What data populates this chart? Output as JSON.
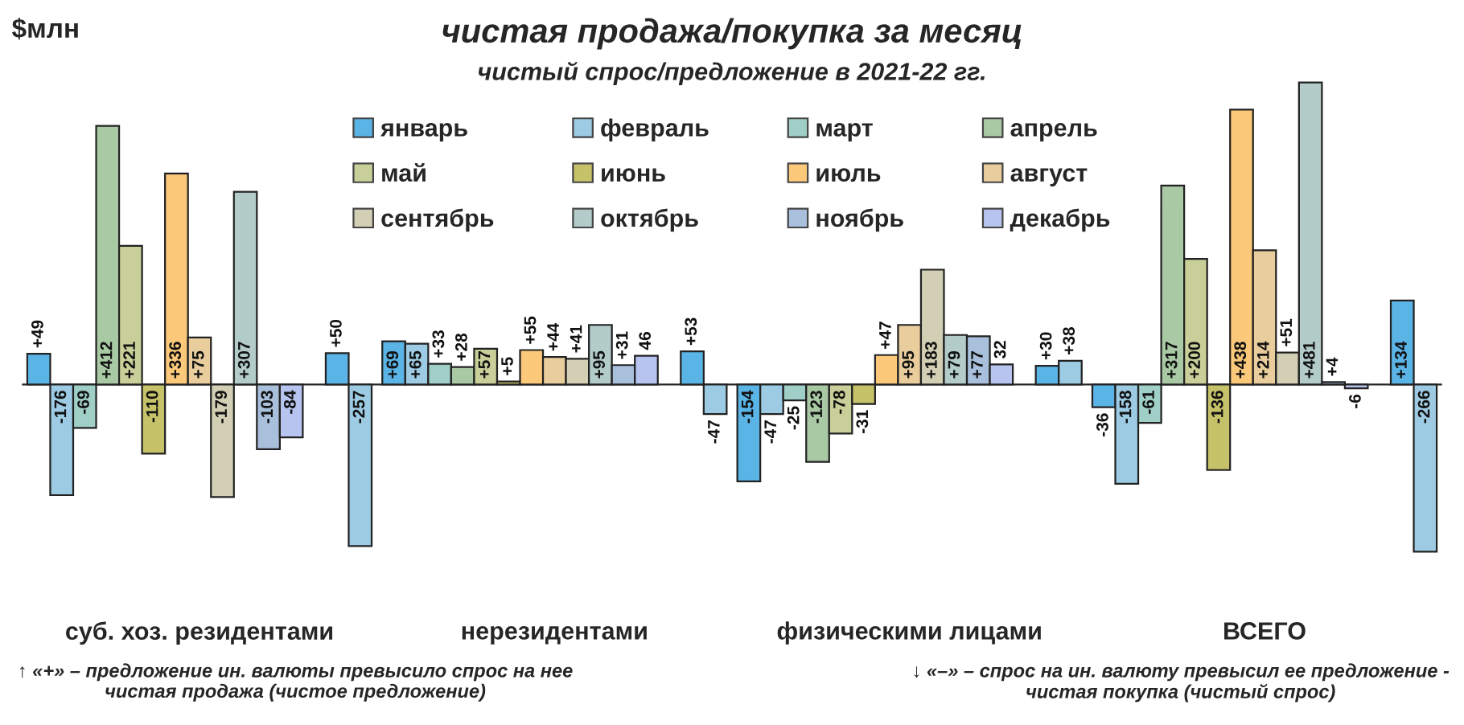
{
  "chart_data": {
    "type": "bar",
    "title": "чистая продажа/покупка за месяц",
    "subtitle": "чистый спрос/предложение в 2021-22 гг.",
    "ylabel": "$млн",
    "categories": [
      "суб. хоз. резидентами",
      "нерезидентами",
      "физическими лицами",
      "ВСЕГО"
    ],
    "series": [
      {
        "name": "январь",
        "color": "#5bb4e6",
        "values": [
          49,
          69,
          -154,
          -36
        ],
        "value_labels": [
          "+49",
          "+69",
          "-154",
          "-36"
        ]
      },
      {
        "name": "февраль",
        "color": "#9dcbe3",
        "values": [
          -176,
          65,
          -47,
          -158
        ],
        "value_labels": [
          "-176",
          "+65",
          "-47",
          "-158"
        ]
      },
      {
        "name": "март",
        "color": "#9fcfc6",
        "values": [
          -69,
          33,
          -25,
          -61
        ],
        "value_labels": [
          "-69",
          "+33",
          "-25",
          "-61"
        ]
      },
      {
        "name": "апрель",
        "color": "#a9c9a4",
        "values": [
          412,
          28,
          -123,
          317
        ],
        "value_labels": [
          "+412",
          "+28",
          "-123",
          "+317"
        ]
      },
      {
        "name": "май",
        "color": "#c9cf98",
        "values": [
          221,
          57,
          -78,
          200
        ],
        "value_labels": [
          "+221",
          "+57",
          "-78",
          "+200"
        ]
      },
      {
        "name": "июнь",
        "color": "#c6c26a",
        "values": [
          -110,
          5,
          -31,
          -136
        ],
        "value_labels": [
          "-110",
          "+5",
          "-31",
          "-136"
        ]
      },
      {
        "name": "июль",
        "color": "#fcc97a",
        "values": [
          336,
          55,
          47,
          438
        ],
        "value_labels": [
          "+336",
          "+55",
          "+47",
          "+438"
        ]
      },
      {
        "name": "август",
        "color": "#e9cd9d",
        "values": [
          75,
          44,
          95,
          214
        ],
        "value_labels": [
          "+75",
          "+44",
          "+95",
          "+214"
        ]
      },
      {
        "name": "сентябрь",
        "color": "#d2cfb4",
        "values": [
          -179,
          41,
          183,
          51
        ],
        "value_labels": [
          "-179",
          "+41",
          "+183",
          "+51"
        ]
      },
      {
        "name": "октябрь",
        "color": "#b3ccc9",
        "values": [
          307,
          95,
          79,
          481
        ],
        "value_labels": [
          "+307",
          "+95",
          "+79",
          "+481"
        ]
      },
      {
        "name": "ноябрь",
        "color": "#a8c0dc",
        "values": [
          -103,
          31,
          77,
          4
        ],
        "value_labels": [
          "-103",
          "+31",
          "+77",
          "+4"
        ]
      },
      {
        "name": "декабрь",
        "color": "#b7c4f0",
        "values": [
          -84,
          46,
          32,
          -6
        ],
        "value_labels": [
          "-84",
          "46",
          "32",
          "-6"
        ]
      },
      {
        "values": [
          null,
          null,
          null,
          null
        ]
      },
      {
        "color": "#5bb4e6",
        "values": [
          50,
          53,
          30,
          134
        ],
        "value_labels": [
          "+50",
          "+53",
          "+30",
          "+134"
        ]
      },
      {
        "color": "#9dcbe3",
        "values": [
          -257,
          -47,
          38,
          -266
        ],
        "value_labels": [
          "-257",
          "-47",
          "+38",
          "-266"
        ]
      }
    ],
    "legend": "top",
    "annotations": [
      "↑ «+» – предложение ин. валюты превысило спрос на нее\nчистая продажа (чистое предложение)",
      "↓ «–» – спрос на ин. валюту превысил ее предложение -\nчистая покупка (чистый спрос)"
    ]
  }
}
